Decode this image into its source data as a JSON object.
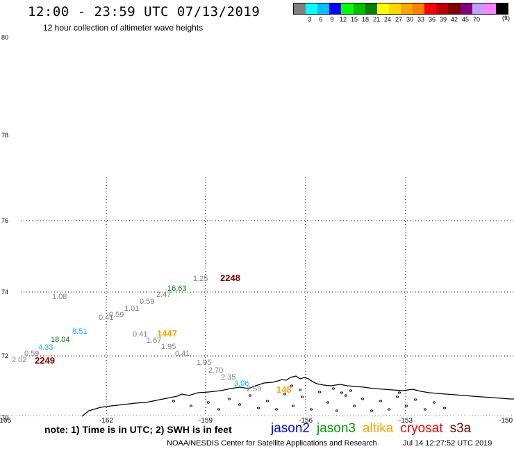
{
  "header": {
    "title": "12:00 - 23:59 UTC 07/13/2019",
    "subtitle": "12 hour collection of altimeter wave heights"
  },
  "legend": {
    "colors": [
      "#808080",
      "#00ffff",
      "#00c0ff",
      "#0000ff",
      "#00ff00",
      "#00c000",
      "#008000",
      "#ffff00",
      "#ffd700",
      "#ffa500",
      "#ff8000",
      "#ff0000",
      "#c00000",
      "#800000",
      "#800080",
      "#c0a0ff",
      "#ff80ff",
      "#000000"
    ],
    "labels": [
      "3",
      "6",
      "9",
      "12",
      "15",
      "18",
      "21",
      "24",
      "27",
      "30",
      "33",
      "36",
      "39",
      "42",
      "45",
      "70"
    ],
    "unit": "(ft)"
  },
  "map": {
    "lat_labels": [
      "80",
      "78",
      "76",
      "74",
      "72",
      "70"
    ],
    "lon_labels": [
      "-165",
      "-162",
      "-159",
      "-156",
      "-153",
      "-150"
    ],
    "wave_heights": [
      {
        "text": "2249",
        "color": "#800000",
        "big": true
      },
      {
        "text": "2.02",
        "color": "#808080"
      },
      {
        "text": "0.59",
        "color": "#808080"
      },
      {
        "text": "4.33",
        "color": "#00c0ff"
      },
      {
        "text": "18.04",
        "color": "#008000"
      },
      {
        "text": "8.51",
        "color": "#00c0ff"
      },
      {
        "text": "1.08",
        "color": "#808080"
      },
      {
        "text": "0.41",
        "color": "#808080"
      },
      {
        "text": "0.59",
        "color": "#808080"
      },
      {
        "text": "1.01",
        "color": "#808080"
      },
      {
        "text": "0.59",
        "color": "#808080"
      },
      {
        "text": "2.47",
        "color": "#808080"
      },
      {
        "text": "16.63",
        "color": "#008000"
      },
      {
        "text": "1.25",
        "color": "#808080"
      },
      {
        "text": "2248",
        "color": "#800000",
        "big": true
      },
      {
        "text": "0.41",
        "color": "#808080"
      },
      {
        "text": "1447",
        "color": "#ffa500",
        "big": true
      },
      {
        "text": "1.67",
        "color": "#808080"
      },
      {
        "text": "1.95",
        "color": "#808080"
      },
      {
        "text": "0.41",
        "color": "#808080"
      },
      {
        "text": "1.95",
        "color": "#808080"
      },
      {
        "text": "2.70",
        "color": "#808080"
      },
      {
        "text": "2.35",
        "color": "#808080"
      },
      {
        "text": "3.06",
        "color": "#00c0ff"
      },
      {
        "text": "2.59",
        "color": "#808080"
      },
      {
        "text": "148",
        "color": "#ffa500",
        "big": true
      }
    ]
  },
  "footer": {
    "note": "note: 1) Time is in UTC; 2) SWH is in feet",
    "satellites": [
      {
        "name": "jason2",
        "color": "#0000ff"
      },
      {
        "name": "jason3",
        "color": "#00a000"
      },
      {
        "name": "altika",
        "color": "#ffa500"
      },
      {
        "name": "cryosat",
        "color": "#ff0000"
      },
      {
        "name": "s3a",
        "color": "#800000"
      }
    ],
    "credit": "NOAA/NESDIS Center for Satellite Applications and Research",
    "timestamp": "Jul 14 12:27:52 UTC 2019"
  }
}
